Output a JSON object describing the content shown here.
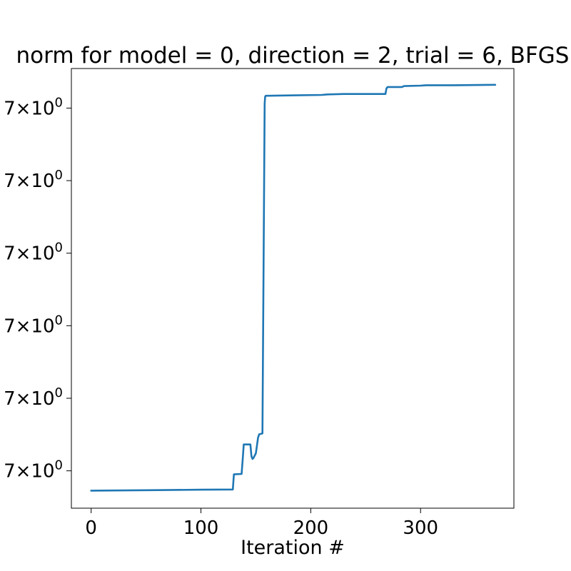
{
  "chart_data": {
    "type": "line",
    "title": "norm for model = 0, direction = 2, trial = 6, BFGS",
    "xlabel": "Iteration #",
    "ylabel": "",
    "xlim": [
      -18,
      385
    ],
    "ylim": [
      0,
      1
    ],
    "yscale": "log",
    "grid": false,
    "legend": "none",
    "x_ticks": [
      {
        "value": 0,
        "label": "0"
      },
      {
        "value": 100,
        "label": "100"
      },
      {
        "value": 200,
        "label": "200"
      },
      {
        "value": 300,
        "label": "300"
      }
    ],
    "y_ticks": [
      {
        "value": 0.91,
        "mantissa": "7",
        "times": "×",
        "base": "10",
        "exponent": "0"
      },
      {
        "value": 0.745,
        "mantissa": "7",
        "times": "×",
        "base": "10",
        "exponent": "0"
      },
      {
        "value": 0.58,
        "mantissa": "7",
        "times": "×",
        "base": "10",
        "exponent": "0"
      },
      {
        "value": 0.415,
        "mantissa": "7",
        "times": "×",
        "base": "10",
        "exponent": "0"
      },
      {
        "value": 0.25,
        "mantissa": "7",
        "times": "×",
        "base": "10",
        "exponent": "0"
      },
      {
        "value": 0.085,
        "mantissa": "7",
        "times": "×",
        "base": "10",
        "exponent": "0"
      }
    ],
    "series": [
      {
        "color": "#1f77b4",
        "x": [
          0,
          30,
          60,
          100,
          129,
          130,
          137,
          138,
          139,
          145,
          146,
          147,
          148,
          150,
          152,
          153,
          156,
          158,
          158.5,
          159,
          160,
          185,
          210,
          215,
          230,
          255,
          268,
          269,
          270,
          283,
          285,
          300,
          305,
          330,
          368
        ],
        "y": [
          0.04,
          0.0405,
          0.041,
          0.042,
          0.0425,
          0.077,
          0.078,
          0.11,
          0.145,
          0.145,
          0.118,
          0.112,
          0.115,
          0.125,
          0.16,
          0.168,
          0.17,
          0.92,
          0.936,
          0.938,
          0.938,
          0.939,
          0.94,
          0.941,
          0.942,
          0.942,
          0.942,
          0.955,
          0.958,
          0.958,
          0.96,
          0.961,
          0.962,
          0.962,
          0.963
        ]
      }
    ]
  }
}
